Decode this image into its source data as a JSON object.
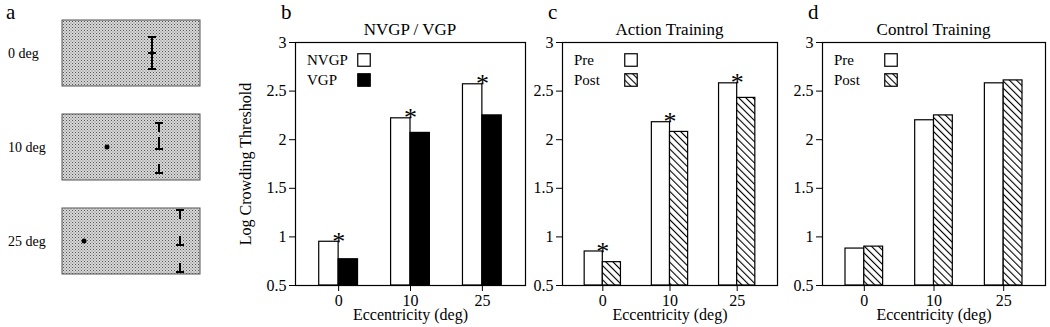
{
  "stimulus_panel": {
    "panel_label": "a",
    "rows": [
      "0 deg",
      "10 deg",
      "25 deg"
    ]
  },
  "chart_data": [
    {
      "type": "bar",
      "panel_label": "b",
      "title": "NVGP / VGP",
      "y_label": "Log Crowding Threshold",
      "x_label": "Eccentricity (deg)",
      "categories": [
        "0",
        "10",
        "25"
      ],
      "series": [
        {
          "name": "NVGP",
          "color": "#ffffff",
          "values": [
            0.95,
            2.22,
            2.57
          ]
        },
        {
          "name": "VGP",
          "color": "#000000",
          "values": [
            0.77,
            2.07,
            2.25
          ]
        }
      ],
      "ylim": [
        0.5,
        3
      ],
      "yticks": [
        0.5,
        1,
        1.5,
        2,
        2.5,
        3
      ],
      "legend": "top-left",
      "annotations": [
        "*",
        "*",
        "*"
      ]
    },
    {
      "type": "bar",
      "panel_label": "c",
      "title": "Action Training",
      "x_label": "Eccentricity (deg)",
      "categories": [
        "0",
        "10",
        "25"
      ],
      "series": [
        {
          "name": "Pre",
          "color": "#ffffff",
          "values": [
            0.85,
            2.18,
            2.58
          ]
        },
        {
          "name": "Post",
          "color": "#000000",
          "line_style": "hatched",
          "values": [
            0.74,
            2.08,
            2.43
          ]
        }
      ],
      "ylim": [
        0.5,
        3
      ],
      "yticks": [
        0.5,
        1,
        1.5,
        2,
        2.5,
        3
      ],
      "legend": "top-left",
      "annotations": [
        "*",
        "*",
        "*"
      ]
    },
    {
      "type": "bar",
      "panel_label": "d",
      "title": "Control Training",
      "x_label": "Eccentricity (deg)",
      "categories": [
        "0",
        "10",
        "25"
      ],
      "series": [
        {
          "name": "Pre",
          "color": "#ffffff",
          "values": [
            0.88,
            2.2,
            2.58
          ]
        },
        {
          "name": "Post",
          "color": "#000000",
          "line_style": "hatched",
          "values": [
            0.9,
            2.25,
            2.61
          ]
        }
      ],
      "ylim": [
        0.5,
        3
      ],
      "yticks": [
        0.5,
        1,
        1.5,
        2,
        2.5,
        3
      ],
      "legend": "top-left"
    }
  ]
}
